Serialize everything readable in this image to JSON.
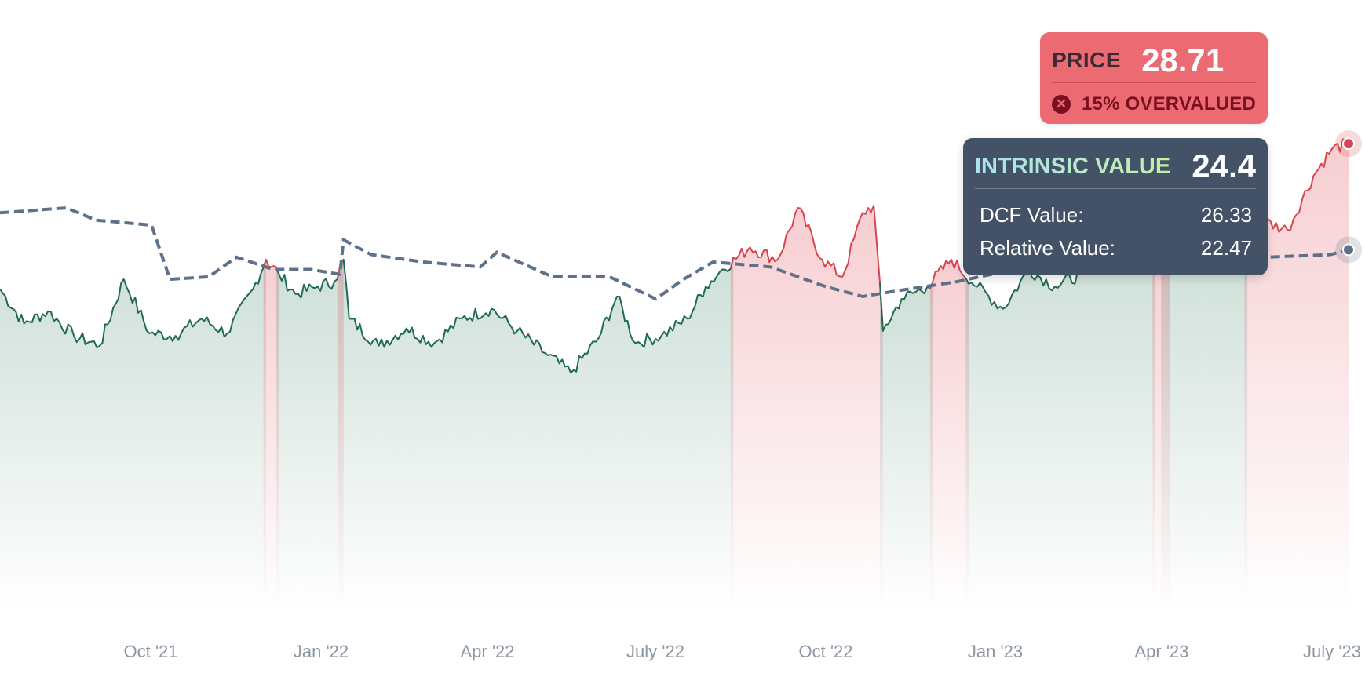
{
  "chart_data": {
    "type": "line",
    "x_ticks": [
      "Oct '21",
      "Jan '22",
      "Apr '22",
      "July '22",
      "Oct '22",
      "Jan '23",
      "Apr '23",
      "July '23"
    ],
    "x_range": [
      "2021-07-15",
      "2023-07-15"
    ],
    "y_range": [
      10,
      32
    ],
    "grid": false,
    "series": [
      {
        "key": "price",
        "style": "solid, green when undervalued, red when overvalued",
        "points": [
          [
            "2021-07-15",
            22.8
          ],
          [
            "2021-07-28",
            21.4
          ],
          [
            "2021-08-10",
            21.9
          ],
          [
            "2021-08-24",
            20.9
          ],
          [
            "2021-09-07",
            20.5
          ],
          [
            "2021-09-20",
            23.2
          ],
          [
            "2021-10-04",
            21.0
          ],
          [
            "2021-10-18",
            20.9
          ],
          [
            "2021-11-01",
            21.6
          ],
          [
            "2021-11-15",
            21.0
          ],
          [
            "2021-11-29",
            22.8
          ],
          [
            "2021-12-06",
            24.0
          ],
          [
            "2021-12-13",
            23.4
          ],
          [
            "2021-12-22",
            22.6
          ],
          [
            "2022-01-03",
            22.9
          ],
          [
            "2022-01-12",
            23.1
          ],
          [
            "2022-01-17",
            24.0
          ],
          [
            "2022-01-20",
            21.6
          ],
          [
            "2022-02-05",
            20.5
          ],
          [
            "2022-02-20",
            21.2
          ],
          [
            "2022-03-07",
            20.6
          ],
          [
            "2022-03-22",
            21.6
          ],
          [
            "2022-04-07",
            22.0
          ],
          [
            "2022-04-21",
            21.1
          ],
          [
            "2022-05-06",
            20.2
          ],
          [
            "2022-05-20",
            19.4
          ],
          [
            "2022-06-04",
            20.8
          ],
          [
            "2022-06-14",
            22.5
          ],
          [
            "2022-06-24",
            20.6
          ],
          [
            "2022-07-08",
            20.9
          ],
          [
            "2022-07-22",
            21.6
          ],
          [
            "2022-08-01",
            22.9
          ],
          [
            "2022-08-10",
            23.6
          ],
          [
            "2022-08-25",
            24.5
          ],
          [
            "2022-09-09",
            24.0
          ],
          [
            "2022-09-20",
            26.1
          ],
          [
            "2022-10-03",
            24.0
          ],
          [
            "2022-10-14",
            23.3
          ],
          [
            "2022-10-25",
            25.9
          ],
          [
            "2022-10-31",
            26.2
          ],
          [
            "2022-11-05",
            21.1
          ],
          [
            "2022-11-15",
            22.4
          ],
          [
            "2022-11-29",
            22.9
          ],
          [
            "2022-12-12",
            24.0
          ],
          [
            "2022-12-26",
            22.9
          ],
          [
            "2023-01-09",
            22.0
          ],
          [
            "2023-01-23",
            23.6
          ],
          [
            "2023-02-06",
            22.9
          ],
          [
            "2023-02-20",
            23.4
          ],
          [
            "2023-03-06",
            23.8
          ],
          [
            "2023-03-20",
            23.6
          ],
          [
            "2023-04-03",
            24.6
          ],
          [
            "2023-04-17",
            23.8
          ],
          [
            "2023-05-01",
            24.6
          ],
          [
            "2023-05-15",
            24.0
          ],
          [
            "2023-05-29",
            25.6
          ],
          [
            "2023-06-12",
            25.2
          ],
          [
            "2023-06-26",
            27.4
          ],
          [
            "2023-07-06",
            28.5
          ],
          [
            "2023-07-15",
            28.71
          ]
        ]
      },
      {
        "key": "intrinsic_value",
        "style": "dashed",
        "points": [
          [
            "2021-07-15",
            25.9
          ],
          [
            "2021-08-20",
            26.1
          ],
          [
            "2021-09-05",
            25.6
          ],
          [
            "2021-10-05",
            25.4
          ],
          [
            "2021-10-15",
            23.2
          ],
          [
            "2021-11-05",
            23.3
          ],
          [
            "2021-11-20",
            24.1
          ],
          [
            "2021-12-10",
            23.6
          ],
          [
            "2021-12-30",
            23.6
          ],
          [
            "2022-01-15",
            23.4
          ],
          [
            "2022-01-17",
            24.8
          ],
          [
            "2022-02-01",
            24.2
          ],
          [
            "2022-03-01",
            23.9
          ],
          [
            "2022-04-01",
            23.7
          ],
          [
            "2022-04-10",
            24.3
          ],
          [
            "2022-05-10",
            23.3
          ],
          [
            "2022-06-10",
            23.3
          ],
          [
            "2022-07-05",
            22.4
          ],
          [
            "2022-07-20",
            23.2
          ],
          [
            "2022-08-05",
            23.9
          ],
          [
            "2022-09-05",
            23.7
          ],
          [
            "2022-10-05",
            22.9
          ],
          [
            "2022-10-25",
            22.5
          ],
          [
            "2022-11-10",
            22.7
          ],
          [
            "2022-12-15",
            23.1
          ],
          [
            "2023-01-15",
            23.6
          ],
          [
            "2023-02-15",
            23.9
          ],
          [
            "2023-03-15",
            24.1
          ],
          [
            "2023-04-15",
            24.6
          ],
          [
            "2023-05-15",
            24.9
          ],
          [
            "2023-06-01",
            24.1
          ],
          [
            "2023-07-05",
            24.2
          ],
          [
            "2023-07-15",
            24.4
          ]
        ]
      }
    ],
    "end_markers": [
      {
        "series": "price",
        "value": 28.71
      },
      {
        "series": "intrinsic_value",
        "value": 24.4
      }
    ]
  },
  "price_card": {
    "label": "PRICE",
    "value": "28.71",
    "status_icon": "close-circle-icon",
    "status_text": "15% OVERVALUED"
  },
  "intrinsic_card": {
    "label": "INTRINSIC VALUE",
    "value": "24.4",
    "rows": [
      {
        "label": "DCF Value:",
        "value": "26.33"
      },
      {
        "label": "Relative Value:",
        "value": "22.47"
      }
    ]
  },
  "colors": {
    "undervalued_line": "#1f6b4d",
    "overvalued_line": "#d64550",
    "intrinsic_dashed": "#5e7189",
    "price_card_bg": "#ec6b73",
    "intrinsic_card_bg": "#435266",
    "axis_text": "#8c96a3"
  }
}
